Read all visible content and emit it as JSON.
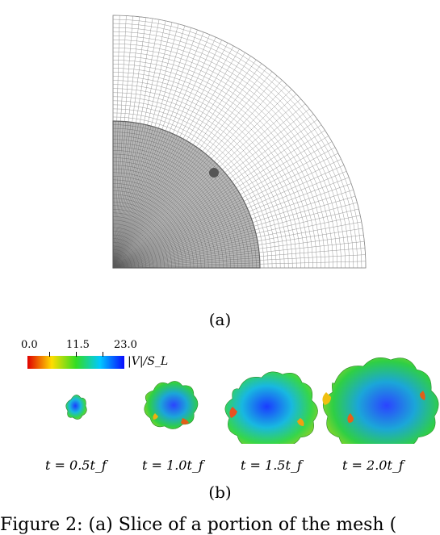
{
  "panel_a": {
    "caption": "(a)"
  },
  "panel_b": {
    "caption": "(b)",
    "colorbar": {
      "ticks": [
        "0.0",
        "11.5",
        "23.0"
      ],
      "label": "|V|/S_L",
      "colors": [
        "#e00000",
        "#ffdd00",
        "#33dd22",
        "#00c8ff",
        "#0a0aff"
      ]
    },
    "time_labels": [
      "t = 0.5t_f",
      "t = 1.0t_f",
      "t = 1.5t_f",
      "t = 2.0t_f"
    ]
  },
  "figure_caption": "Figure 2: (a) Slice of a portion of the mesh (",
  "colors": {
    "mesh_line": "#9a9a9a",
    "mesh_fine": "#5c5c5c",
    "fine_fill": "#b8b8b8"
  }
}
